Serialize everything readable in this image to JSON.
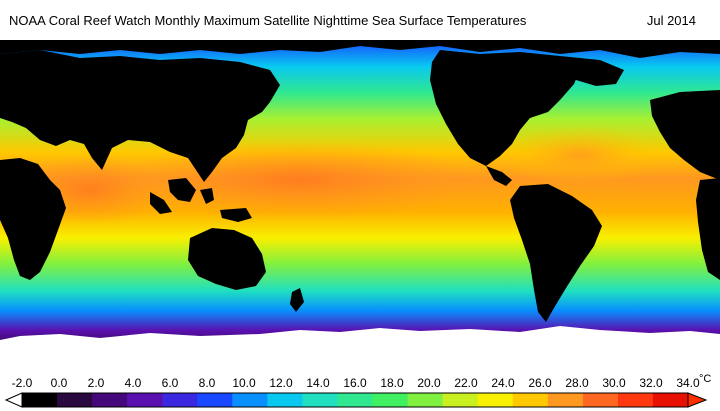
{
  "header": {
    "title": "NOAA Coral Reef Watch Monthly Maximum Satellite Nighttime Sea Surface Temperatures",
    "date": "Jul 2014"
  },
  "colorbar": {
    "ticks": [
      "-2.0",
      "0.0",
      "2.0",
      "4.0",
      "6.0",
      "8.0",
      "10.0",
      "12.0",
      "14.0",
      "16.0",
      "18.0",
      "20.0",
      "22.0",
      "24.0",
      "26.0",
      "28.0",
      "30.0",
      "32.0",
      "34.0"
    ],
    "unit": "°C",
    "colors": [
      "#000000",
      "#2a0840",
      "#45087a",
      "#5a10b0",
      "#3a28e0",
      "#1848ff",
      "#0890ff",
      "#08c8f0",
      "#20e0c0",
      "#30e890",
      "#40f060",
      "#80f040",
      "#c8f020",
      "#f8f000",
      "#ffc800",
      "#ff9820",
      "#ff6820",
      "#ff3810",
      "#e81000"
    ],
    "under_color": "#ffffff",
    "over_color": "#ff3000"
  },
  "map": {
    "land_color": "#000000",
    "ice_color": "#ffffff"
  }
}
